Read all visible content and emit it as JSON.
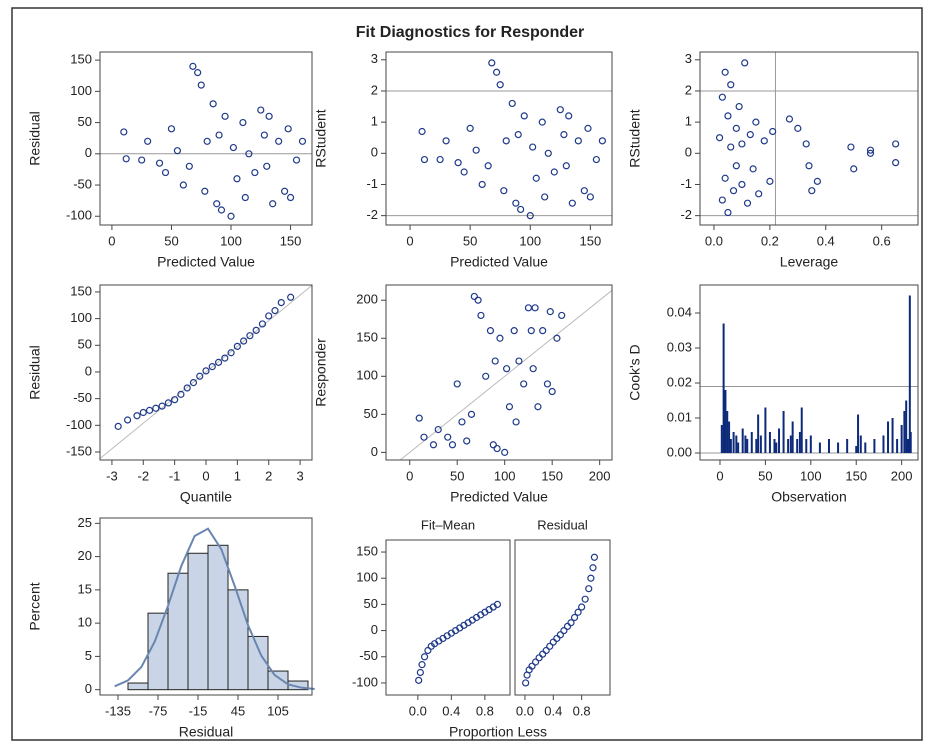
{
  "title": "Fit Diagnostics for Responder",
  "chart_data": [
    {
      "type": "scatter",
      "x_label": "Predicted Value",
      "y_label": "Residual",
      "color": "#1f3a8a",
      "xlim": [
        -10,
        168
      ],
      "xticks": [
        0,
        50,
        100,
        150
      ],
      "ylim": [
        -114,
        163
      ],
      "yticks": [
        -100,
        -50,
        0,
        50,
        100,
        150
      ],
      "hlines": [
        0
      ],
      "x": [
        10,
        12,
        25,
        30,
        40,
        45,
        50,
        55,
        60,
        65,
        68,
        72,
        75,
        78,
        80,
        85,
        88,
        90,
        92,
        95,
        100,
        102,
        105,
        110,
        112,
        115,
        120,
        125,
        128,
        130,
        132,
        135,
        140,
        145,
        148,
        150,
        155,
        160
      ],
      "values": [
        35,
        -8,
        -10,
        20,
        -15,
        -30,
        40,
        5,
        -50,
        -20,
        140,
        130,
        110,
        -60,
        20,
        80,
        -80,
        30,
        -90,
        60,
        -100,
        10,
        -40,
        50,
        -70,
        0,
        -30,
        70,
        30,
        -20,
        60,
        -80,
        20,
        -60,
        40,
        -70,
        -10,
        20
      ]
    },
    {
      "type": "scatter",
      "x_label": "Predicted Value",
      "y_label": "RStudent",
      "color": "#1f3a8a",
      "xlim": [
        -20,
        168
      ],
      "xticks": [
        0,
        50,
        100,
        150
      ],
      "ylim": [
        -2.3,
        3.25
      ],
      "yticks": [
        -2,
        -1,
        0,
        1,
        2,
        3
      ],
      "hlines": [
        -2,
        2
      ],
      "x": [
        10,
        12,
        25,
        30,
        40,
        45,
        50,
        55,
        60,
        65,
        68,
        72,
        75,
        78,
        80,
        85,
        88,
        90,
        92,
        95,
        100,
        102,
        105,
        110,
        112,
        115,
        120,
        125,
        128,
        130,
        132,
        135,
        140,
        145,
        148,
        150,
        155,
        160
      ],
      "values": [
        0.7,
        -0.2,
        -0.2,
        0.4,
        -0.3,
        -0.6,
        0.8,
        0.1,
        -1.0,
        -0.4,
        2.9,
        2.6,
        2.2,
        -1.2,
        0.4,
        1.6,
        -1.6,
        0.6,
        -1.8,
        1.2,
        -2.0,
        0.2,
        -0.8,
        1.0,
        -1.4,
        0.0,
        -0.6,
        1.4,
        0.6,
        -0.4,
        1.2,
        -1.6,
        0.4,
        -1.2,
        0.8,
        -1.4,
        -0.2,
        0.4
      ]
    },
    {
      "type": "scatter",
      "x_label": "Leverage",
      "y_label": "RStudent",
      "color": "#1f3a8a",
      "xlim": [
        -0.05,
        0.73
      ],
      "xticks": [
        {
          "value": 0,
          "label": "0.0"
        },
        0.2,
        0.4,
        0.6
      ],
      "ylim": [
        -2.3,
        3.25
      ],
      "yticks": [
        -2,
        -1,
        0,
        1,
        2,
        3
      ],
      "hlines": [
        -2,
        2
      ],
      "vlines": [
        0.22
      ],
      "x": [
        0.02,
        0.03,
        0.03,
        0.04,
        0.04,
        0.05,
        0.05,
        0.06,
        0.06,
        0.07,
        0.08,
        0.08,
        0.09,
        0.1,
        0.1,
        0.11,
        0.12,
        0.13,
        0.14,
        0.15,
        0.16,
        0.18,
        0.2,
        0.21,
        0.27,
        0.3,
        0.33,
        0.34,
        0.35,
        0.37,
        0.49,
        0.5,
        0.56,
        0.56,
        0.65,
        0.65
      ],
      "values": [
        0.5,
        -1.5,
        1.8,
        2.6,
        -0.8,
        1.2,
        -1.9,
        0.2,
        2.2,
        -1.2,
        0.8,
        -0.4,
        1.5,
        -1.0,
        0.3,
        2.9,
        -1.6,
        0.6,
        -0.5,
        1.0,
        -1.3,
        0.4,
        -0.9,
        0.7,
        1.1,
        0.8,
        0.3,
        -0.4,
        -1.2,
        -0.9,
        0.2,
        -0.5,
        0.0,
        0.1,
        0.3,
        -0.3
      ]
    },
    {
      "type": "scatter",
      "x_label": "Quantile",
      "y_label": "Residual",
      "color": "#1f3a8a",
      "xlim": [
        -3.38,
        3.38
      ],
      "xticks": [
        -3,
        -2,
        -1,
        0,
        1,
        2,
        3
      ],
      "ylim": [
        -165,
        163
      ],
      "yticks": [
        -150,
        -100,
        -50,
        0,
        50,
        100,
        150
      ],
      "reference_line": {
        "intercept": 0,
        "slope": 48
      },
      "x": [
        -2.8,
        -2.5,
        -2.2,
        -2,
        -1.8,
        -1.6,
        -1.4,
        -1.2,
        -1,
        -0.8,
        -0.6,
        -0.4,
        -0.2,
        0,
        0.2,
        0.4,
        0.6,
        0.8,
        1,
        1.2,
        1.4,
        1.6,
        1.8,
        2,
        2.2,
        2.4,
        2.7
      ],
      "values": [
        -102,
        -90,
        -82,
        -76,
        -72,
        -68,
        -64,
        -58,
        -52,
        -42,
        -30,
        -20,
        -8,
        2,
        10,
        18,
        26,
        36,
        48,
        58,
        68,
        78,
        90,
        105,
        115,
        130,
        140
      ]
    },
    {
      "type": "scatter",
      "x_label": "Predicted Value",
      "y_label": "Responder",
      "color": "#1f3a8a",
      "xlim": [
        -25,
        213
      ],
      "xticks": [
        0,
        50,
        100,
        150,
        200
      ],
      "ylim": [
        -10,
        220
      ],
      "yticks": [
        0,
        50,
        100,
        150,
        200
      ],
      "reference_line": {
        "intercept": 0,
        "slope": 1
      },
      "x": [
        10,
        15,
        25,
        30,
        40,
        45,
        50,
        55,
        60,
        65,
        68,
        72,
        75,
        80,
        85,
        88,
        90,
        92,
        95,
        100,
        102,
        105,
        110,
        112,
        115,
        120,
        125,
        128,
        130,
        132,
        135,
        140,
        145,
        148,
        150,
        155,
        160
      ],
      "values": [
        45,
        20,
        10,
        30,
        20,
        10,
        90,
        40,
        15,
        50,
        205,
        200,
        180,
        100,
        160,
        10,
        120,
        5,
        150,
        0,
        110,
        60,
        160,
        40,
        120,
        90,
        190,
        160,
        110,
        190,
        60,
        160,
        90,
        185,
        80,
        150,
        180
      ]
    },
    {
      "type": "needle",
      "x_label": "Observation",
      "y_label": "Cook's D",
      "color": "#0d2a7a",
      "xlim": [
        -22,
        218
      ],
      "xticks": [
        0,
        50,
        100,
        150,
        200
      ],
      "ylim": [
        -0.002,
        0.048
      ],
      "yticks": [
        {
          "value": 0,
          "label": "0.00"
        },
        {
          "value": 0.01,
          "label": "0.01"
        },
        {
          "value": 0.02,
          "label": "0.02"
        },
        {
          "value": 0.03,
          "label": "0.03"
        },
        {
          "value": 0.04,
          "label": "0.04"
        }
      ],
      "hlines": [
        0,
        0.019
      ],
      "x": [
        2,
        4,
        5,
        6,
        8,
        10,
        12,
        15,
        18,
        20,
        25,
        28,
        30,
        35,
        40,
        42,
        45,
        50,
        55,
        60,
        62,
        65,
        70,
        75,
        78,
        80,
        85,
        88,
        90,
        95,
        100,
        110,
        120,
        130,
        140,
        150,
        152,
        155,
        160,
        170,
        180,
        185,
        190,
        195,
        200,
        203,
        205,
        207,
        209,
        210
      ],
      "values": [
        0.008,
        0.037,
        0.006,
        0.018,
        0.012,
        0.009,
        0.004,
        0.006,
        0.005,
        0.003,
        0.007,
        0.005,
        0.004,
        0.006,
        0.004,
        0.011,
        0.005,
        0.013,
        0.006,
        0.004,
        0.003,
        0.007,
        0.012,
        0.004,
        0.005,
        0.009,
        0.004,
        0.006,
        0.013,
        0.004,
        0.005,
        0.003,
        0.004,
        0.003,
        0.004,
        0.002,
        0.011,
        0.005,
        0.003,
        0.004,
        0.005,
        0.009,
        0.01,
        0.004,
        0.008,
        0.012,
        0.015,
        0.004,
        0.045,
        0.006
      ]
    },
    {
      "type": "histogram",
      "x_label": "Residual",
      "y_label": "Percent",
      "color": "#c9d5e6",
      "curve_color": "#6a86b0",
      "xlim": [
        -162,
        156
      ],
      "xticks": [
        -135,
        -75,
        -15,
        45,
        105
      ],
      "ylim": [
        -0.8,
        25.8
      ],
      "yticks": [
        0,
        5,
        10,
        15,
        20,
        25
      ],
      "bins": [
        -120,
        -90,
        -60,
        -30,
        0,
        30,
        60,
        90,
        120,
        150
      ],
      "values": [
        1,
        11.5,
        17.5,
        20.5,
        21.7,
        15,
        8,
        2.8,
        1.3
      ],
      "density": {
        "x": [
          -140,
          -120,
          -100,
          -80,
          -60,
          -40,
          -20,
          0,
          20,
          40,
          60,
          80,
          100,
          120,
          140,
          160
        ],
        "values": [
          0.5,
          1.4,
          3.4,
          7.2,
          12.6,
          18.6,
          23.1,
          24.2,
          21.1,
          15.6,
          9.7,
          5.1,
          2.2,
          0.8,
          0.3,
          0.1
        ]
      }
    },
    {
      "type": "spread",
      "x_label": "Proportion Less",
      "color": "#1f3a8a",
      "ylim": [
        -123,
        173
      ],
      "yticks": [
        -100,
        -50,
        0,
        50,
        100,
        150
      ],
      "series": [
        {
          "name": "Fit–Mean",
          "xlim": [
            -0.38,
            1.1
          ],
          "xticks": [
            {
              "value": 0,
              "label": "0.0"
            },
            0.4,
            0.8
          ],
          "x": [
            0.01,
            0.03,
            0.05,
            0.08,
            0.12,
            0.16,
            0.2,
            0.25,
            0.3,
            0.35,
            0.4,
            0.45,
            0.5,
            0.55,
            0.6,
            0.65,
            0.7,
            0.75,
            0.8,
            0.85,
            0.9,
            0.95
          ],
          "values": [
            -95,
            -80,
            -65,
            -50,
            -38,
            -30,
            -25,
            -20,
            -15,
            -10,
            -5,
            0,
            5,
            10,
            15,
            20,
            25,
            30,
            35,
            40,
            45,
            50
          ]
        },
        {
          "name": "Residual",
          "xlim": [
            -0.14,
            1.2
          ],
          "xticks": [
            {
              "value": 0,
              "label": "0.0"
            },
            0.4,
            0.8
          ],
          "x": [
            0.01,
            0.03,
            0.06,
            0.1,
            0.15,
            0.2,
            0.25,
            0.3,
            0.35,
            0.4,
            0.45,
            0.5,
            0.55,
            0.6,
            0.65,
            0.7,
            0.75,
            0.8,
            0.85,
            0.9,
            0.93,
            0.96,
            0.98
          ],
          "values": [
            -100,
            -85,
            -75,
            -68,
            -60,
            -52,
            -45,
            -38,
            -30,
            -22,
            -15,
            -8,
            0,
            8,
            15,
            25,
            35,
            45,
            60,
            80,
            100,
            120,
            140
          ]
        }
      ]
    }
  ]
}
